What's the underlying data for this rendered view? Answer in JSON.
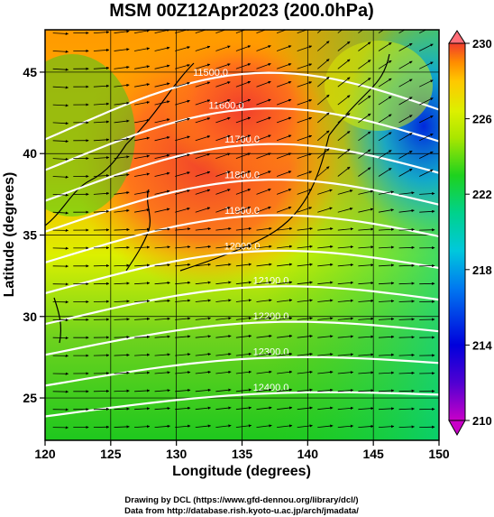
{
  "chart_data": {
    "type": "heatmap",
    "title": "MSM 00Z12Apr2023 (200.0hPa)",
    "xlabel": "Longitude (degrees)",
    "ylabel": "Latitude  (degrees)",
    "xlim": [
      120,
      150
    ],
    "ylim": [
      22.4,
      47.6
    ],
    "x_ticks": [
      120,
      125,
      130,
      135,
      140,
      145,
      150
    ],
    "y_ticks": [
      25,
      30,
      35,
      40,
      45
    ],
    "colorbar": {
      "range": [
        210,
        230
      ],
      "ticks": [
        210,
        214,
        218,
        222,
        226,
        230
      ],
      "extend": "both",
      "position": "right"
    },
    "contours": [
      {
        "label": "11500.0",
        "level": 11500
      },
      {
        "label": "11600.0",
        "level": 11600
      },
      {
        "label": "11700.0",
        "level": 11700
      },
      {
        "label": "11800.0",
        "level": 11800
      },
      {
        "label": "11900.0",
        "level": 11900
      },
      {
        "label": "12000.0",
        "level": 12000
      },
      {
        "label": "12100.0",
        "level": 12100
      },
      {
        "label": "12200.0",
        "level": 12200
      },
      {
        "label": "12300.0",
        "level": 12300
      },
      {
        "label": "12400.0",
        "level": 12400
      }
    ],
    "wind_vectors": "westerly",
    "grid": true
  },
  "credits": {
    "line1": "Drawing by DCL (https://www.gfd-dennou.org/library/dcl/)",
    "line2": "Data from http://database.rish.kyoto-u.ac.jp/arch/jmadata/"
  },
  "colors": {
    "min": "#c800c8",
    "low": "#0000dc",
    "cyan": "#00c8dc",
    "green": "#1ed21e",
    "yellow": "#dcf000",
    "orange": "#ff9600",
    "red": "#f03c2d",
    "max": "#ff6e78"
  }
}
